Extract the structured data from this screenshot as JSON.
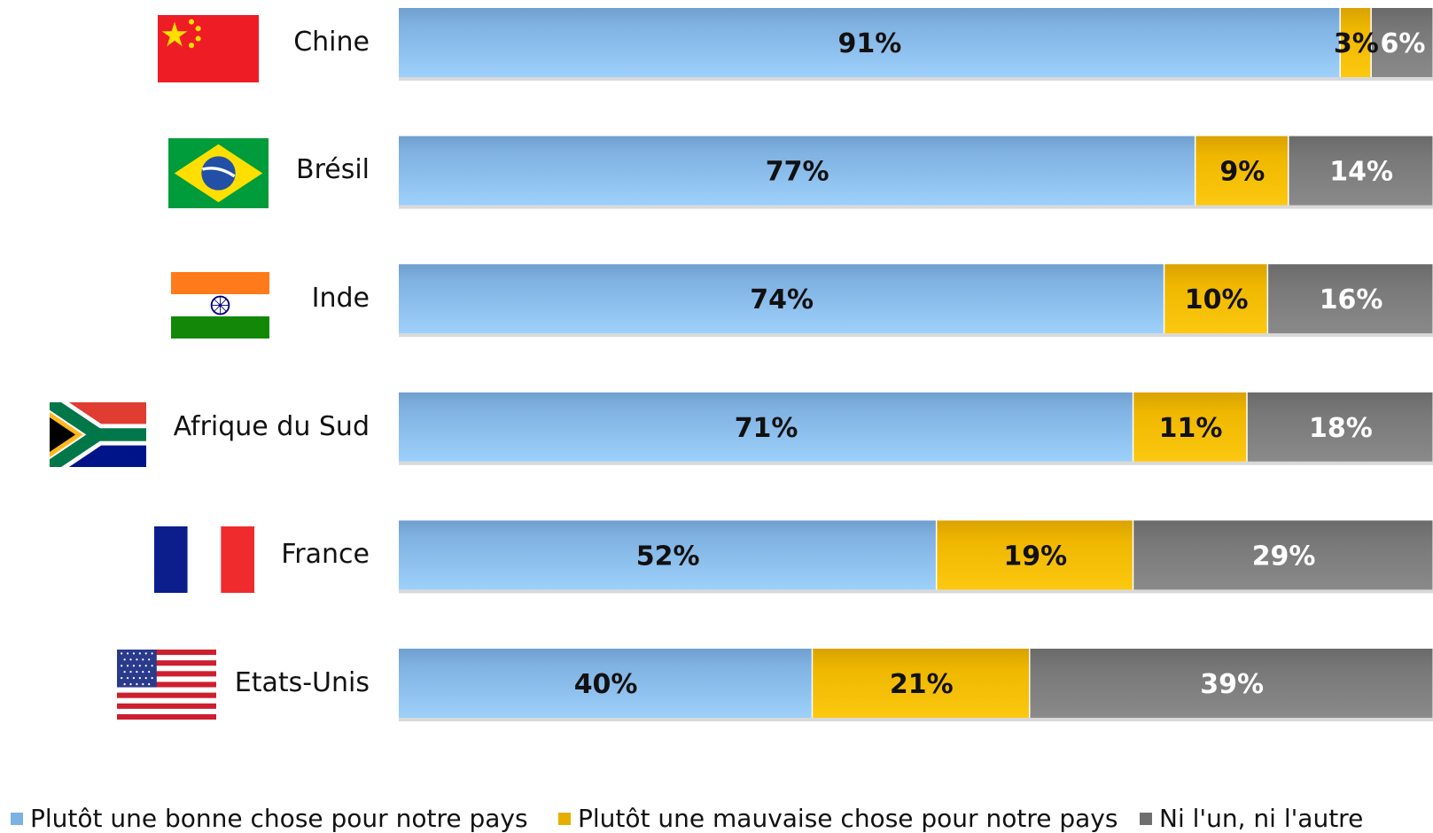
{
  "chart_data": {
    "type": "bar",
    "orientation": "horizontal",
    "stacked": true,
    "categories": [
      "Chine",
      "Brésil",
      "Inde",
      "Afrique du Sud",
      "France",
      "Etats-Unis"
    ],
    "series": [
      {
        "name": "Plutôt une bonne chose pour notre pays",
        "values": [
          91,
          77,
          74,
          71,
          52,
          40
        ],
        "labels": [
          "91%",
          "77%",
          "74%",
          "71%",
          "52%",
          "40%"
        ],
        "color": "#8cc2f1"
      },
      {
        "name": "Plutôt une mauvaise chose pour notre pays",
        "values": [
          3,
          9,
          10,
          11,
          19,
          21
        ],
        "labels": [
          "3%",
          "9%",
          "10%",
          "11%",
          "19%",
          "21%"
        ],
        "color": "#f2b900"
      },
      {
        "name": "Ni l'un, ni l'autre",
        "values": [
          6,
          14,
          16,
          18,
          29,
          39
        ],
        "labels": [
          "6%",
          "14%",
          "16%",
          "18%",
          "29%",
          "39%"
        ],
        "color": "#7f7f7f"
      }
    ],
    "xlim": [
      0,
      100
    ],
    "grid": false,
    "legend_position": "bottom",
    "flags": [
      "china-flag-icon",
      "brazil-flag-icon",
      "india-flag-icon",
      "south-africa-flag-icon",
      "france-flag-icon",
      "usa-flag-icon"
    ]
  }
}
